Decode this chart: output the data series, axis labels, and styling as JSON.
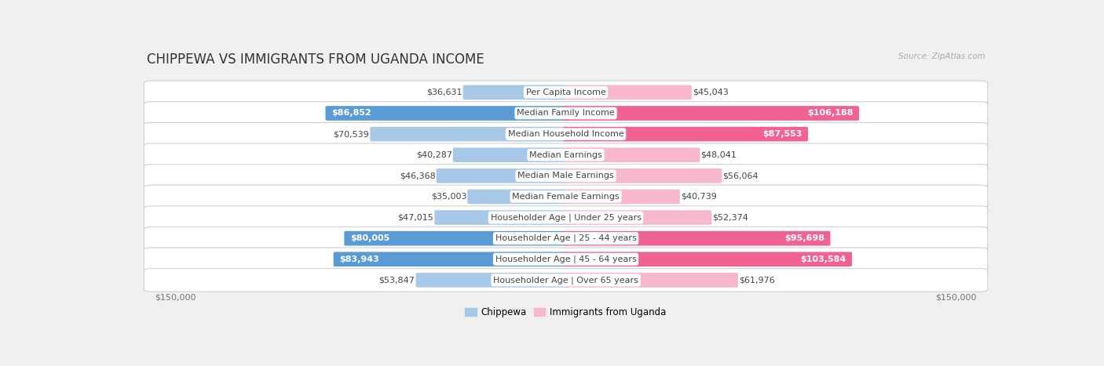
{
  "title": "CHIPPEWA VS IMMIGRANTS FROM UGANDA INCOME",
  "source": "Source: ZipAtlas.com",
  "categories": [
    "Per Capita Income",
    "Median Family Income",
    "Median Household Income",
    "Median Earnings",
    "Median Male Earnings",
    "Median Female Earnings",
    "Householder Age | Under 25 years",
    "Householder Age | 25 - 44 years",
    "Householder Age | 45 - 64 years",
    "Householder Age | Over 65 years"
  ],
  "chippewa_values": [
    36631,
    86852,
    70539,
    40287,
    46368,
    35003,
    47015,
    80005,
    83943,
    53847
  ],
  "uganda_values": [
    45043,
    106188,
    87553,
    48041,
    56064,
    40739,
    52374,
    95698,
    103584,
    61976
  ],
  "chippewa_color_light": "#a8c8e8",
  "chippewa_color_dark": "#5b9bd5",
  "uganda_color_light": "#f7b8ce",
  "uganda_color_dark": "#f06292",
  "large_threshold": 75000,
  "max_value": 150000,
  "xlabel_left": "$150,000",
  "xlabel_right": "$150,000",
  "legend_chippewa": "Chippewa",
  "legend_uganda": "Immigrants from Uganda",
  "background_color": "#f0f0f0",
  "row_background": "#ffffff",
  "title_fontsize": 12,
  "label_fontsize": 8,
  "value_fontsize": 8
}
